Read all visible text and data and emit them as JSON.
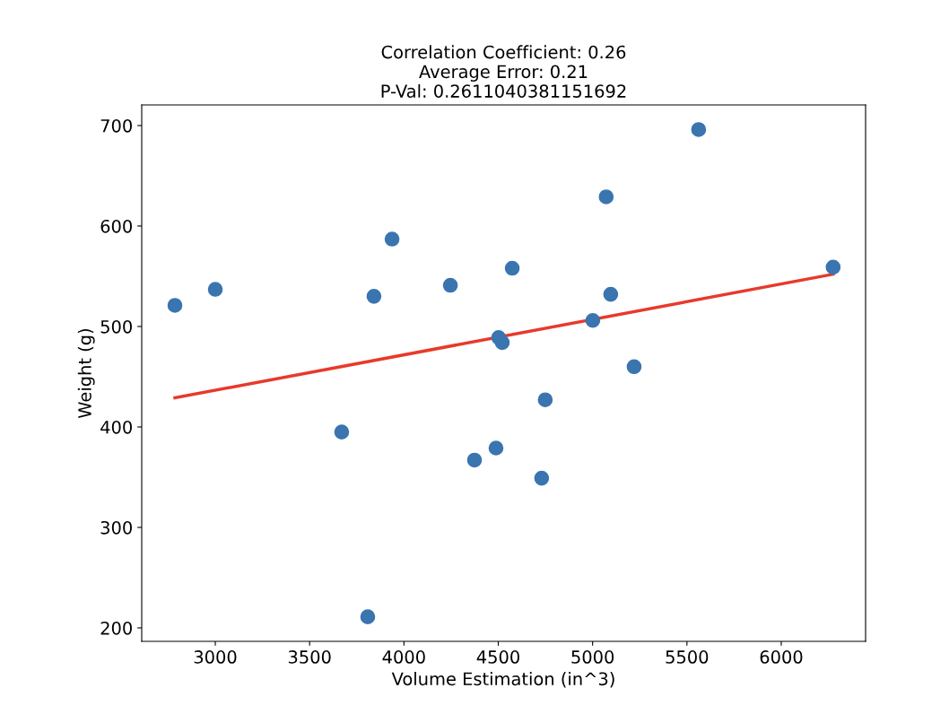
{
  "chart_data": {
    "type": "scatter",
    "title": "Correlation Coefficient: 0.26\nAverage Error: 0.21\nP-Val: 0.2611040381151692",
    "xlabel": "Volume Estimation (in^3)",
    "ylabel": "Weight (g)",
    "xlim": [
      2610,
      6447
    ],
    "ylim": [
      186.6,
      720.5
    ],
    "xticks": [
      3000,
      3500,
      4000,
      4500,
      5000,
      5500,
      6000
    ],
    "yticks": [
      200,
      300,
      400,
      500,
      600,
      700
    ],
    "grid": false,
    "series": [
      {
        "marker": "circle",
        "color": "#3a75b0",
        "x": [
          2786,
          3000,
          3670,
          3841,
          3808,
          3937,
          4246,
          4374,
          4488,
          4502,
          4521,
          4574,
          4730,
          4749,
          5001,
          5072,
          5096,
          5220,
          5562,
          6275
        ],
        "values": [
          521,
          537,
          395,
          530,
          211,
          587,
          541,
          367,
          379,
          489,
          484,
          558,
          349,
          427,
          506,
          629,
          532,
          460,
          696,
          559
        ]
      },
      {
        "type": "line",
        "color": "#e8392b",
        "x": [
          2786,
          6275
        ],
        "values": [
          429,
          552
        ]
      }
    ]
  }
}
